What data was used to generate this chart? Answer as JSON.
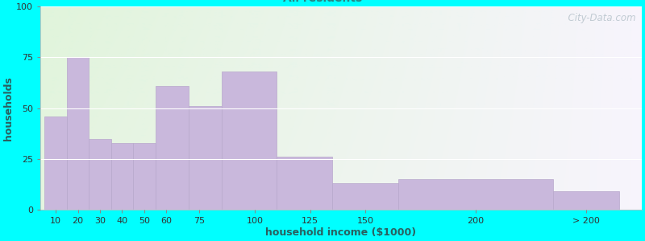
{
  "xlabel": "household income ($1000)",
  "ylabel": "households",
  "background_color": "#00FFFF",
  "bar_color": "#c9b8dc",
  "bar_edge_color": "#b8a8cc",
  "values": [
    46,
    75,
    35,
    33,
    33,
    61,
    51,
    68,
    26,
    13,
    15,
    9
  ],
  "bar_lefts": [
    5,
    15,
    25,
    35,
    45,
    55,
    70,
    85,
    110,
    135,
    165,
    235
  ],
  "bar_widths": [
    10,
    10,
    10,
    10,
    10,
    15,
    15,
    25,
    25,
    30,
    70,
    30
  ],
  "xlim": [
    3,
    275
  ],
  "ylim": [
    0,
    100
  ],
  "yticks": [
    0,
    25,
    50,
    75,
    100
  ],
  "xtick_labels": [
    "10",
    "20",
    "30",
    "40",
    "50",
    "60",
    "75",
    "100",
    "125",
    "150",
    "200",
    "> 200"
  ],
  "xtick_positions": [
    10,
    20,
    30,
    40,
    50,
    60,
    75,
    100,
    125,
    150,
    200,
    250
  ],
  "watermark": "  City-Data.com",
  "title_fontsize": 12,
  "subtitle_fontsize": 10,
  "axis_label_fontsize": 9,
  "tick_fontsize": 8,
  "title_color": "#1a1a1a",
  "subtitle_color": "#2a8080",
  "ylabel_color": "#2a6060",
  "xlabel_color": "#2a6060"
}
